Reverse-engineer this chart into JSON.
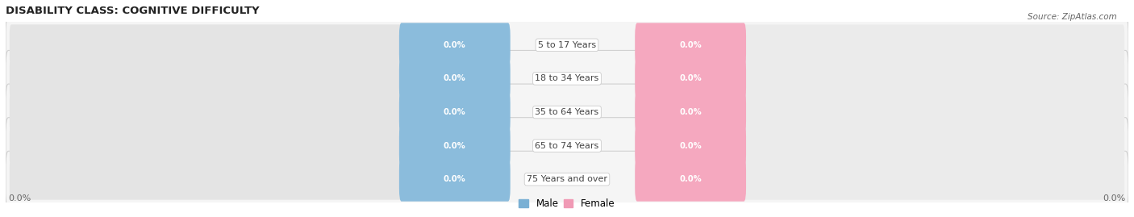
{
  "title": "DISABILITY CLASS: COGNITIVE DIFFICULTY",
  "source": "Source: ZipAtlas.com",
  "categories": [
    "5 to 17 Years",
    "18 to 34 Years",
    "35 to 64 Years",
    "65 to 74 Years",
    "75 Years and over"
  ],
  "male_values": [
    0.0,
    0.0,
    0.0,
    0.0,
    0.0
  ],
  "female_values": [
    0.0,
    0.0,
    0.0,
    0.0,
    0.0
  ],
  "male_color": "#8bbcdc",
  "female_color": "#f5a8bf",
  "bar_bg_left_color": "#e8e8e8",
  "bar_bg_right_color": "#eeeeee",
  "row_border_color": "#d0d0d0",
  "row_fill_color": "#f5f5f5",
  "title_color": "#222222",
  "source_color": "#666666",
  "legend_male_color": "#7ab0d4",
  "legend_female_color": "#f09ab5",
  "cat_label_color": "#444444",
  "value_label_color": "#ffffff",
  "axis_label_color": "#666666",
  "left_label": "0.0%",
  "right_label": "0.0%",
  "figsize": [
    14.06,
    2.69
  ],
  "dpi": 100
}
